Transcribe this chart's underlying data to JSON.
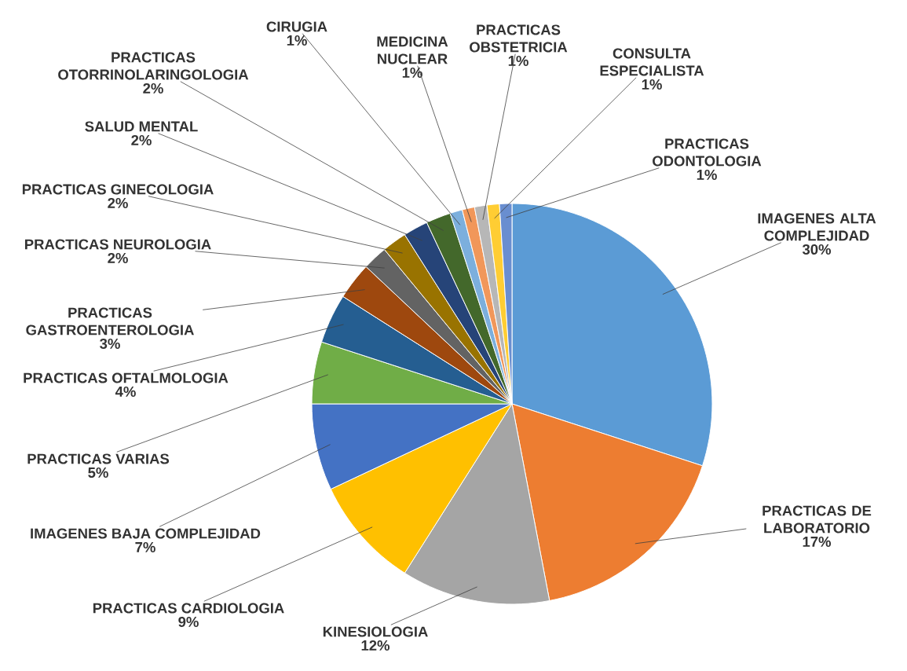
{
  "chart_data": {
    "type": "pie",
    "categories": [
      "IMAGENES ALTA COMPLEJIDAD",
      "PRACTICAS DE LABORATORIO",
      "KINESIOLOGIA",
      "PRACTICAS CARDIOLOGIA",
      "IMAGENES BAJA COMPLEJIDAD",
      "PRACTICAS VARIAS",
      "PRACTICAS OFTALMOLOGIA",
      "PRACTICAS GASTROENTEROLOGIA",
      "PRACTICAS NEUROLOGIA",
      "PRACTICAS GINECOLOGIA",
      "SALUD MENTAL",
      "PRACTICAS OTORRINOLARINGOLOGIA",
      "CIRUGIA",
      "MEDICINA NUCLEAR",
      "PRACTICAS OBSTETRICIA",
      "CONSULTA ESPECIALISTA",
      "PRACTICAS ODONTOLOGIA"
    ],
    "values": [
      30,
      17,
      12,
      9,
      7,
      5,
      4,
      3,
      2,
      2,
      2,
      2,
      1,
      1,
      1,
      1,
      1
    ],
    "value_labels": [
      "30%",
      "17%",
      "12%",
      "9%",
      "7%",
      "5%",
      "4%",
      "3%",
      "2%",
      "2%",
      "2%",
      "2%",
      "1%",
      "1%",
      "1%",
      "1%",
      "1%"
    ],
    "colors": [
      "#5b9bd5",
      "#ed7d31",
      "#a5a5a5",
      "#ffc000",
      "#4472c4",
      "#70ad47",
      "#255e91",
      "#9e480e",
      "#636363",
      "#997300",
      "#264478",
      "#43682b",
      "#7cafdd",
      "#f1975a",
      "#b7b7b7",
      "#ffcd33",
      "#698ed0"
    ]
  }
}
